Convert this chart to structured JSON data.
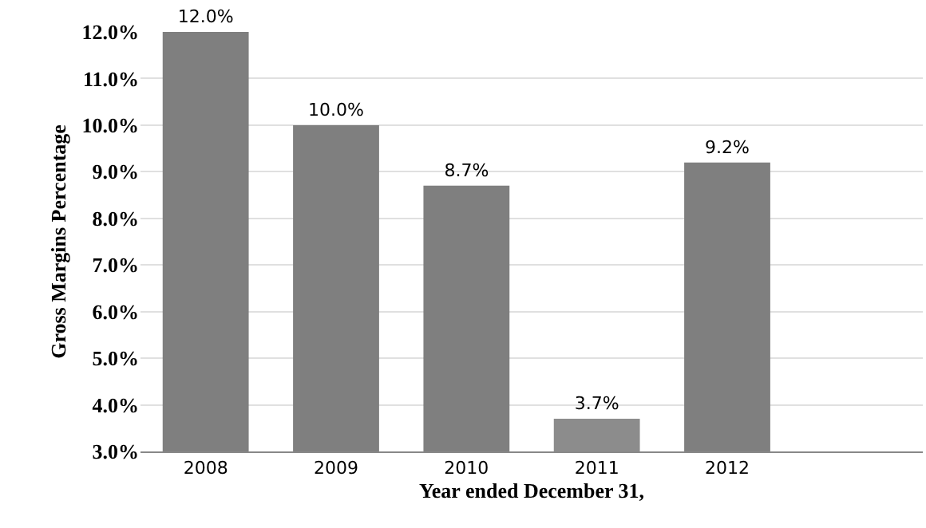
{
  "chart_data": {
    "type": "bar",
    "xlabel": "Year ended December 31,",
    "ylabel": "Gross Margins Percentage",
    "categories": [
      "2008",
      "2009",
      "2010",
      "2011",
      "2012",
      null
    ],
    "values": [
      12.0,
      10.0,
      8.7,
      3.7,
      9.2,
      null
    ],
    "colors": [
      "#7f7f7f",
      "#7f7f7f",
      "#7f7f7f",
      "#8c8c8c",
      "#7f7f7f",
      "#7f7f7f"
    ],
    "value_labels": [
      "12.0%",
      "10.0%",
      "8.7%",
      "3.7%",
      "9.2%",
      null
    ],
    "ylim": [
      3,
      12
    ],
    "yticks": [
      {
        "value": 3,
        "label": "3.0%"
      },
      {
        "value": 4,
        "label": "4.0%"
      },
      {
        "value": 5,
        "label": "5.0%"
      },
      {
        "value": 6,
        "label": "6.0%"
      },
      {
        "value": 7,
        "label": "7.0%"
      },
      {
        "value": 8,
        "label": "8.0%"
      },
      {
        "value": 9,
        "label": "9.0%"
      },
      {
        "value": 10,
        "label": "10.0%"
      },
      {
        "value": 11,
        "label": "11.0%"
      },
      {
        "value": 12,
        "label": "12.0%"
      }
    ],
    "grid": "y",
    "legend": false
  }
}
